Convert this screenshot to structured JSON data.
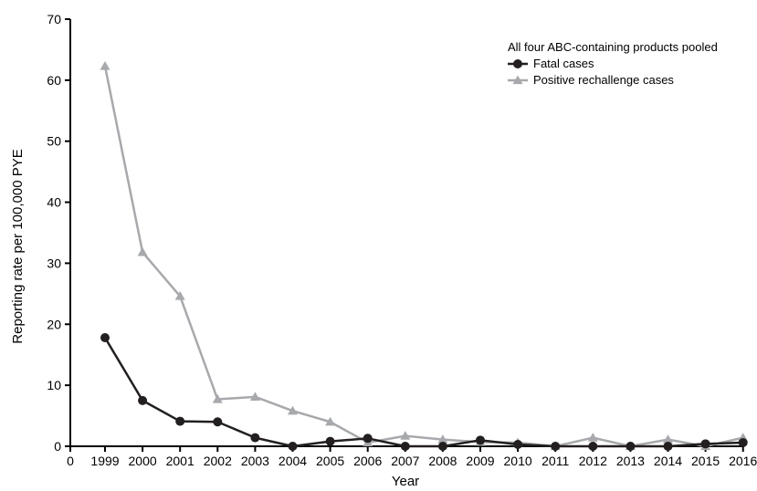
{
  "chart_data": {
    "type": "line",
    "xlabel": "Year",
    "ylabel": "Reporting rate per 100,000 PYE",
    "ylim": [
      0,
      70
    ],
    "y_ticks": [
      0,
      10,
      20,
      30,
      40,
      50,
      60,
      70
    ],
    "x_zero_label": "0",
    "categories": [
      "1999",
      "2000",
      "2001",
      "2002",
      "2003",
      "2004",
      "2005",
      "2006",
      "2007",
      "2008",
      "2009",
      "2010",
      "2011",
      "2012",
      "2013",
      "2014",
      "2015",
      "2016"
    ],
    "legend": {
      "title": "All four ABC-containing products pooled",
      "placement": "top-right"
    },
    "series": [
      {
        "name": "Fatal cases",
        "color": "#231f20",
        "marker": "circle",
        "values": [
          17.8,
          7.5,
          4.1,
          4.0,
          1.4,
          0.0,
          0.8,
          1.3,
          0.0,
          0.0,
          1.0,
          0.3,
          0.0,
          0.0,
          0.0,
          0.0,
          0.4,
          0.6
        ]
      },
      {
        "name": "Positive rechallenge cases",
        "color": "#a7a9ac",
        "marker": "triangle",
        "values": [
          62.3,
          31.8,
          24.6,
          7.7,
          8.1,
          5.8,
          4.0,
          0.6,
          1.7,
          1.1,
          0.7,
          0.6,
          0.0,
          1.4,
          0.0,
          1.1,
          0.0,
          1.4
        ]
      }
    ]
  }
}
